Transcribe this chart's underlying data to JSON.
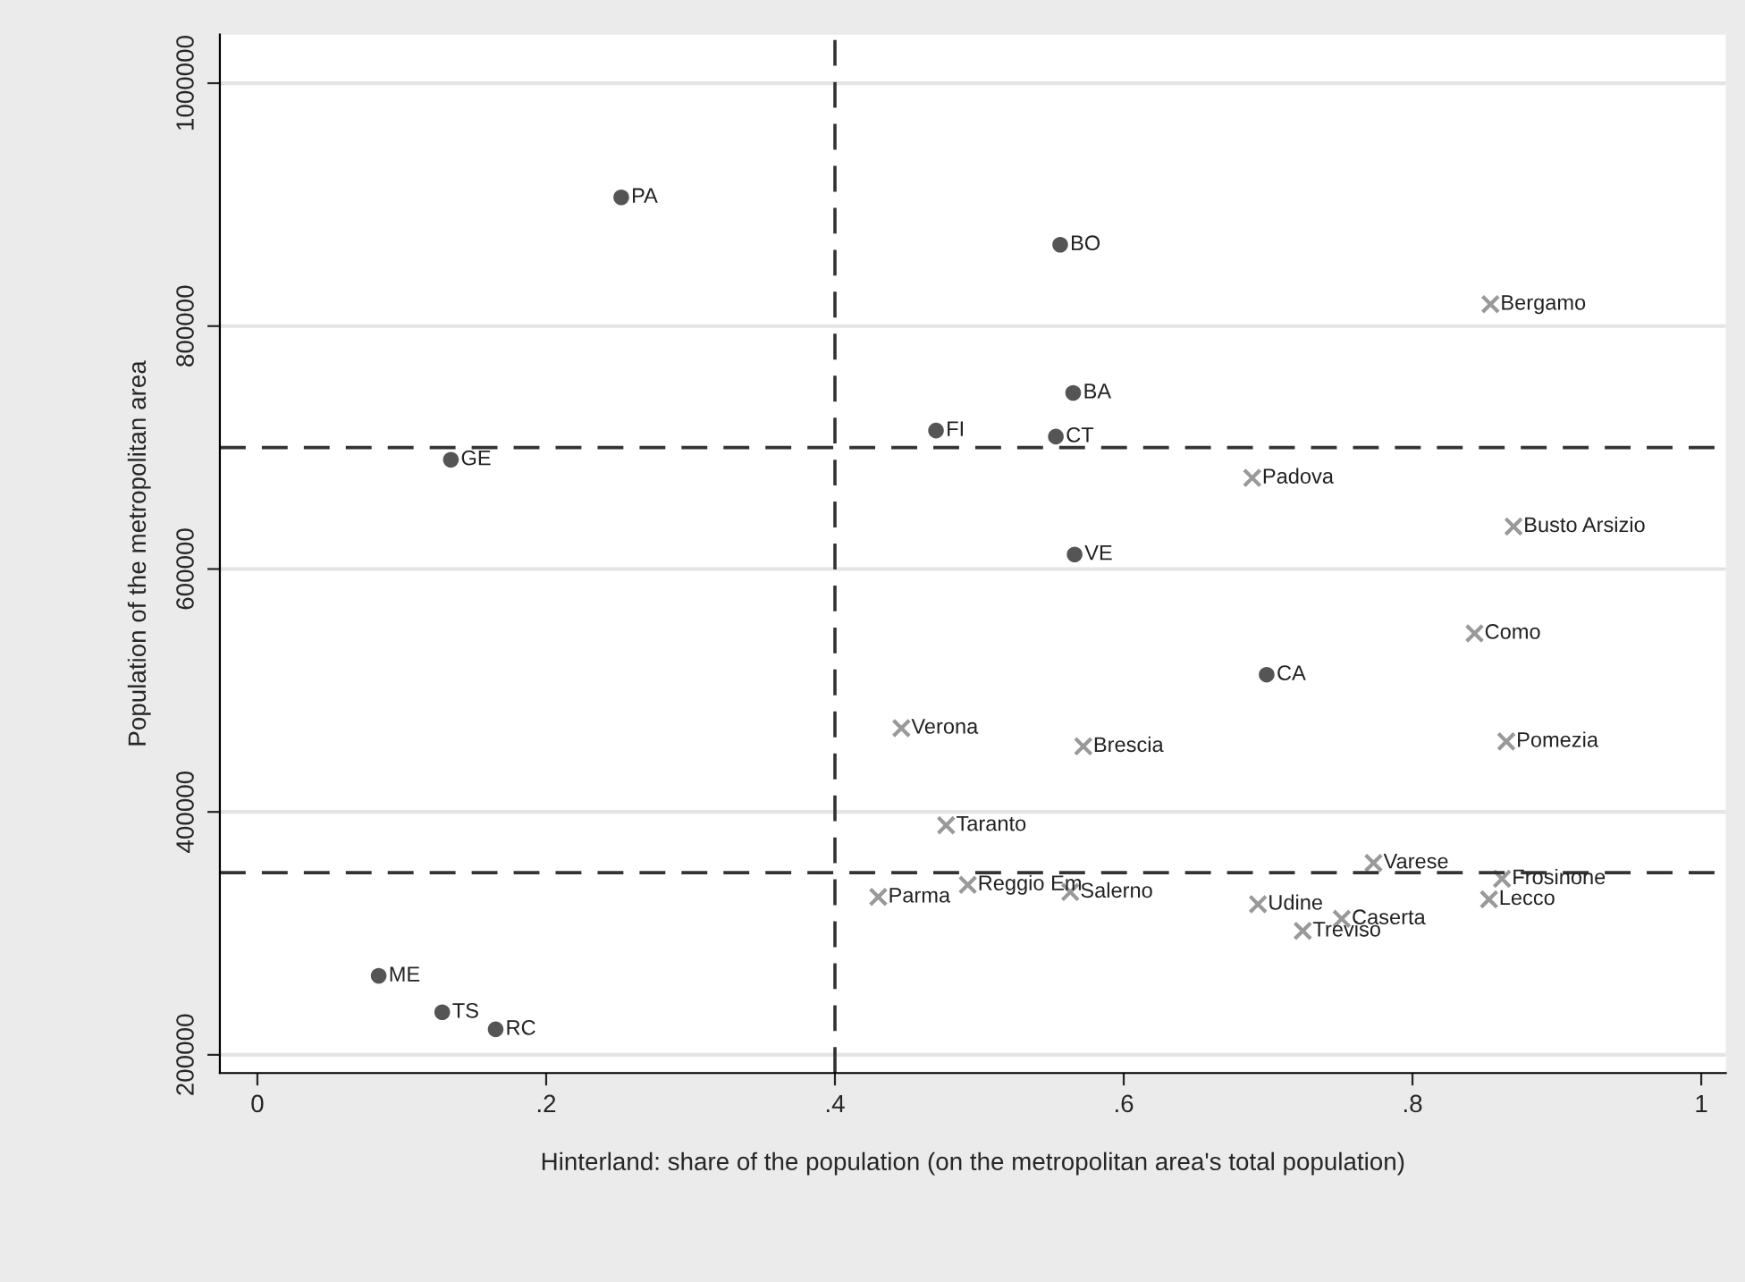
{
  "chart_data": {
    "type": "scatter",
    "xlabel": "Hinterland: share of the population (on the metropolitan area's total population)",
    "ylabel": "Population of the metropolitan area",
    "xlim": [
      -0.026,
      1.017
    ],
    "ylim": [
      185000,
      1040000
    ],
    "xticks": [
      {
        "value": 0,
        "label": "0"
      },
      {
        "value": 0.2,
        "label": ".2"
      },
      {
        "value": 0.4,
        "label": ".4"
      },
      {
        "value": 0.6,
        "label": ".6"
      },
      {
        "value": 0.8,
        "label": ".8"
      },
      {
        "value": 1,
        "label": "1"
      }
    ],
    "yticks": [
      200000,
      400000,
      600000,
      800000,
      1000000
    ],
    "grid": "y",
    "series": [
      {
        "color": "#555555",
        "marker": "circle",
        "x": [
          0.252,
          0.556,
          0.565,
          0.47,
          0.553,
          0.134,
          0.566,
          0.699,
          0.084,
          0.128,
          0.165
        ],
        "values": [
          906000,
          867000,
          745000,
          714000,
          709000,
          690000,
          612000,
          513000,
          265000,
          235000,
          221000
        ]
      },
      {
        "color": "#999999",
        "marker": "cross",
        "x": [
          0.854,
          0.689,
          0.87,
          0.843,
          0.446,
          0.572,
          0.865,
          0.477,
          0.773,
          0.862,
          0.43,
          0.492,
          0.563,
          0.693,
          0.853,
          0.751,
          0.724
        ],
        "values": [
          818000,
          675000,
          635000,
          547000,
          469000,
          454000,
          458000,
          389000,
          358000,
          345000,
          330000,
          340000,
          334000,
          324000,
          328000,
          312000,
          302000
        ]
      }
    ],
    "ref_lines": [
      {
        "axis": "x",
        "value": 0.4,
        "line_style": "dashed"
      },
      {
        "axis": "y",
        "value": 700000,
        "line_style": "dashed"
      },
      {
        "axis": "y",
        "value": 350000,
        "line_style": "dashed"
      }
    ],
    "annotations": [
      {
        "text": "PA",
        "x": 0.252,
        "y": 906000
      },
      {
        "text": "BO",
        "x": 0.556,
        "y": 867000
      },
      {
        "text": "BA",
        "x": 0.565,
        "y": 745000
      },
      {
        "text": "FI",
        "x": 0.47,
        "y": 714000
      },
      {
        "text": "CT",
        "x": 0.553,
        "y": 709000
      },
      {
        "text": "GE",
        "x": 0.134,
        "y": 690000
      },
      {
        "text": "VE",
        "x": 0.566,
        "y": 612000
      },
      {
        "text": "CA",
        "x": 0.699,
        "y": 513000
      },
      {
        "text": "ME",
        "x": 0.084,
        "y": 265000
      },
      {
        "text": "TS",
        "x": 0.128,
        "y": 235000
      },
      {
        "text": "RC",
        "x": 0.165,
        "y": 221000
      },
      {
        "text": "Bergamo",
        "x": 0.854,
        "y": 818000
      },
      {
        "text": "Padova",
        "x": 0.689,
        "y": 675000
      },
      {
        "text": "Busto Arsizio",
        "x": 0.87,
        "y": 635000
      },
      {
        "text": "Como",
        "x": 0.843,
        "y": 547000
      },
      {
        "text": "Verona",
        "x": 0.446,
        "y": 469000
      },
      {
        "text": "Brescia",
        "x": 0.572,
        "y": 454000
      },
      {
        "text": "Pomezia",
        "x": 0.865,
        "y": 458000
      },
      {
        "text": "Taranto",
        "x": 0.477,
        "y": 389000
      },
      {
        "text": "Varese",
        "x": 0.773,
        "y": 358000
      },
      {
        "text": "Frosinone",
        "x": 0.862,
        "y": 345000
      },
      {
        "text": "Parma",
        "x": 0.43,
        "y": 330000
      },
      {
        "text": "Reggio Em",
        "x": 0.492,
        "y": 340000
      },
      {
        "text": "Salerno",
        "x": 0.563,
        "y": 334000
      },
      {
        "text": "Udine",
        "x": 0.693,
        "y": 324000
      },
      {
        "text": "Lecco",
        "x": 0.853,
        "y": 328000
      },
      {
        "text": "Caserta",
        "x": 0.751,
        "y": 312000
      },
      {
        "text": "Treviso",
        "x": 0.724,
        "y": 302000
      }
    ]
  }
}
